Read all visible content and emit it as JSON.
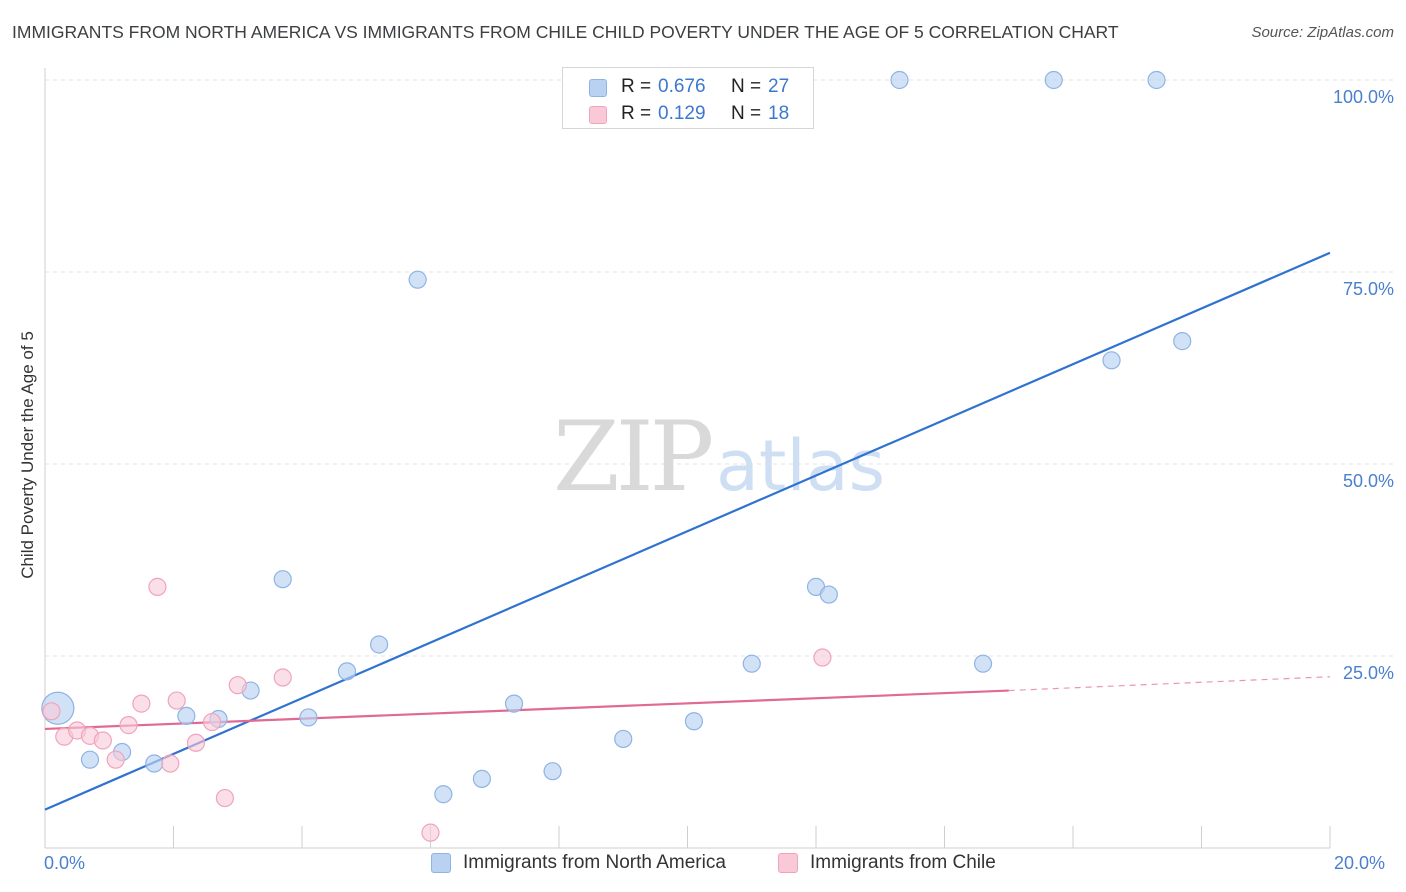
{
  "header": {
    "title": "IMMIGRANTS FROM NORTH AMERICA VS IMMIGRANTS FROM CHILE CHILD POVERTY UNDER THE AGE OF 5 CORRELATION CHART",
    "source": "Source: ZipAtlas.com"
  },
  "watermark": {
    "zip": "ZIP",
    "atlas": "atlas"
  },
  "legend": {
    "r_label": "R =",
    "n_label": "N =",
    "north_america": {
      "r": "0.676",
      "n": "27"
    },
    "chile": {
      "r": "0.129",
      "n": "18"
    }
  },
  "colors": {
    "north_america_fill": "#b9d2f1",
    "north_america_stroke": "#8fb3e6",
    "north_america_line": "#2f72d0",
    "chile_fill": "#f9c9d8",
    "chile_stroke": "#f0a4bc",
    "chile_line": "#e06a93",
    "grid": "#e3e3e3",
    "axis_text": "#4a7fcf"
  },
  "chart_data": {
    "type": "scatter",
    "title": "IMMIGRANTS FROM NORTH AMERICA VS IMMIGRANTS FROM CHILE CHILD POVERTY UNDER THE AGE OF 5 CORRELATION CHART",
    "xlabel": "",
    "ylabel": "Child Poverty Under the Age of 5",
    "xlim": [
      0,
      20
    ],
    "ylim": [
      0,
      100
    ],
    "x_tick_labels": [
      "0.0%",
      "20.0%"
    ],
    "y_tick_labels": [
      "100.0%",
      "75.0%",
      "50.0%",
      "25.0%"
    ],
    "y_ticks": [
      100,
      75,
      50,
      25
    ],
    "grid": true,
    "series": [
      {
        "name": "Immigrants from North America",
        "r": 0.676,
        "n": 27,
        "points": [
          {
            "x": 0.2,
            "y": 18.2,
            "big": true
          },
          {
            "x": 0.7,
            "y": 11.5
          },
          {
            "x": 1.2,
            "y": 12.5
          },
          {
            "x": 1.7,
            "y": 11.0
          },
          {
            "x": 2.2,
            "y": 17.2
          },
          {
            "x": 2.7,
            "y": 16.8
          },
          {
            "x": 3.2,
            "y": 20.5
          },
          {
            "x": 3.7,
            "y": 35.0
          },
          {
            "x": 4.1,
            "y": 17.0
          },
          {
            "x": 4.7,
            "y": 23.0
          },
          {
            "x": 5.2,
            "y": 26.5
          },
          {
            "x": 5.8,
            "y": 74.0
          },
          {
            "x": 6.2,
            "y": 7.0
          },
          {
            "x": 6.8,
            "y": 9.0
          },
          {
            "x": 7.3,
            "y": 18.8
          },
          {
            "x": 7.9,
            "y": 10.0
          },
          {
            "x": 9.0,
            "y": 14.2
          },
          {
            "x": 10.1,
            "y": 16.5
          },
          {
            "x": 11.0,
            "y": 24.0
          },
          {
            "x": 12.0,
            "y": 34.0
          },
          {
            "x": 12.2,
            "y": 33.0
          },
          {
            "x": 13.3,
            "y": 100.0
          },
          {
            "x": 14.6,
            "y": 24.0
          },
          {
            "x": 15.7,
            "y": 100.0
          },
          {
            "x": 16.6,
            "y": 63.5
          },
          {
            "x": 17.3,
            "y": 100.0
          },
          {
            "x": 17.7,
            "y": 66.0
          }
        ],
        "trend": {
          "x0": 0,
          "y0": 5.0,
          "x1": 20,
          "y1": 77.5
        }
      },
      {
        "name": "Immigrants from Chile",
        "r": 0.129,
        "n": 18,
        "points": [
          {
            "x": 0.1,
            "y": 17.8
          },
          {
            "x": 0.3,
            "y": 14.5
          },
          {
            "x": 0.5,
            "y": 15.3
          },
          {
            "x": 0.7,
            "y": 14.6
          },
          {
            "x": 0.9,
            "y": 14.0
          },
          {
            "x": 1.1,
            "y": 11.5
          },
          {
            "x": 1.3,
            "y": 16.0
          },
          {
            "x": 1.5,
            "y": 18.8
          },
          {
            "x": 1.75,
            "y": 34.0
          },
          {
            "x": 1.95,
            "y": 11.0
          },
          {
            "x": 2.05,
            "y": 19.2
          },
          {
            "x": 2.35,
            "y": 13.7
          },
          {
            "x": 2.6,
            "y": 16.4
          },
          {
            "x": 2.8,
            "y": 6.5
          },
          {
            "x": 3.0,
            "y": 21.2
          },
          {
            "x": 3.7,
            "y": 22.2
          },
          {
            "x": 6.0,
            "y": 2.0
          },
          {
            "x": 12.1,
            "y": 24.8
          }
        ],
        "trend": {
          "x0": 0,
          "y0": 15.5,
          "x1": 15.0,
          "y1": 20.5
        },
        "trend_dashed_to": {
          "x": 20,
          "y": 22.3
        }
      }
    ]
  },
  "bottom_legend": {
    "north_america": "Immigrants from North America",
    "chile": "Immigrants from Chile"
  }
}
